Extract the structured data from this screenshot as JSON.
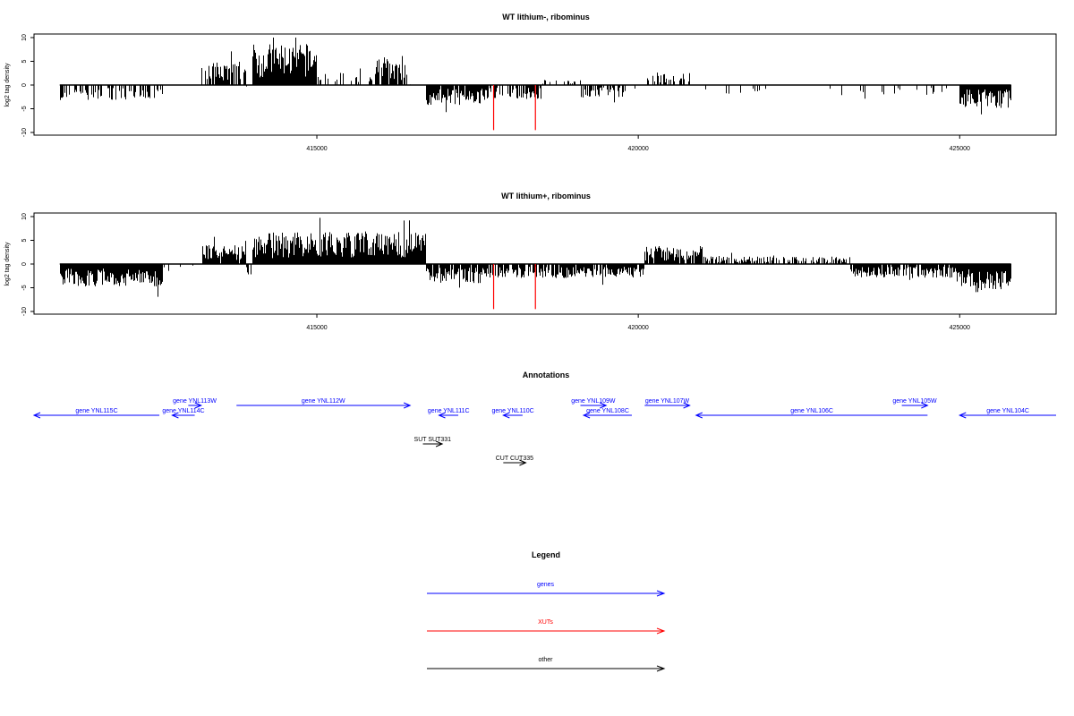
{
  "colors": {
    "gene": "#0000ff",
    "xut": "#ff0000",
    "other": "#000000",
    "axis": "#000000"
  },
  "chart_data": [
    {
      "type": "bar",
      "title": "WT lithium-, ribominus",
      "ylabel": "log2 tag density",
      "xlim": [
        410600,
        426500
      ],
      "ylim": [
        -10,
        10
      ],
      "yticks": [
        10,
        5,
        0,
        -5,
        -10
      ],
      "xticks": [
        415000,
        420000,
        425000
      ],
      "xtick_labels": [
        "415000",
        "420000",
        "425000"
      ],
      "grid": false,
      "segments": [
        {
          "from": 411000,
          "to": 412600,
          "amp": -2.5,
          "fill": 0.55
        },
        {
          "from": 412600,
          "to": 413200,
          "amp": -0.4,
          "fill": 0.05
        },
        {
          "from": 413200,
          "to": 413900,
          "amp": 3.8,
          "fill": 0.8
        },
        {
          "from": 413900,
          "to": 414000,
          "amp": -1.0,
          "fill": 0.3
        },
        {
          "from": 414000,
          "to": 415000,
          "amp": 6.5,
          "fill": 1.0
        },
        {
          "from": 415000,
          "to": 415900,
          "amp": 2.0,
          "fill": 0.25
        },
        {
          "from": 415900,
          "to": 416400,
          "amp": 4.2,
          "fill": 0.9
        },
        {
          "from": 416400,
          "to": 416700,
          "amp": 0.3,
          "fill": 0.05
        },
        {
          "from": 416700,
          "to": 417600,
          "amp": -3.2,
          "fill": 0.9
        },
        {
          "from": 417600,
          "to": 418500,
          "amp": -2.2,
          "fill": 0.6
        },
        {
          "from": 418500,
          "to": 419100,
          "amp": 0.8,
          "fill": 0.3
        },
        {
          "from": 419100,
          "to": 419800,
          "amp": -2.0,
          "fill": 0.6
        },
        {
          "from": 419800,
          "to": 420100,
          "amp": -0.6,
          "fill": 0.1
        },
        {
          "from": 420100,
          "to": 420800,
          "amp": 2.0,
          "fill": 0.5
        },
        {
          "from": 420800,
          "to": 425000,
          "amp": -1.6,
          "fill": 0.1
        },
        {
          "from": 425000,
          "to": 425800,
          "amp": -3.6,
          "fill": 1.0
        }
      ],
      "xut_markers": [
        {
          "x": 417750,
          "y": -9.5
        },
        {
          "x": 418400,
          "y": -9.5
        }
      ]
    },
    {
      "type": "bar",
      "title": "WT lithium+, ribominus",
      "ylabel": "log2 tag density",
      "xlim": [
        410600,
        426500
      ],
      "ylim": [
        -10,
        10
      ],
      "yticks": [
        10,
        5,
        0,
        -5,
        -10
      ],
      "xticks": [
        415000,
        420000,
        425000
      ],
      "xtick_labels": [
        "415000",
        "420000",
        "425000"
      ],
      "grid": false,
      "segments": [
        {
          "from": 411000,
          "to": 412600,
          "amp": -3.5,
          "fill": 1.0
        },
        {
          "from": 412600,
          "to": 413200,
          "amp": -0.8,
          "fill": 0.2
        },
        {
          "from": 413200,
          "to": 413900,
          "amp": 3.0,
          "fill": 0.9
        },
        {
          "from": 413900,
          "to": 414000,
          "amp": -2.0,
          "fill": 0.4
        },
        {
          "from": 414000,
          "to": 416700,
          "amp": 5.0,
          "fill": 1.0
        },
        {
          "from": 416700,
          "to": 417600,
          "amp": -3.0,
          "fill": 0.9
        },
        {
          "from": 417600,
          "to": 418800,
          "amp": -2.2,
          "fill": 0.7
        },
        {
          "from": 418800,
          "to": 420100,
          "amp": -2.2,
          "fill": 0.9
        },
        {
          "from": 420100,
          "to": 421000,
          "amp": 2.8,
          "fill": 0.9
        },
        {
          "from": 421000,
          "to": 423300,
          "amp": 1.2,
          "fill": 0.6
        },
        {
          "from": 423300,
          "to": 425000,
          "amp": -2.2,
          "fill": 0.9
        },
        {
          "from": 425000,
          "to": 425800,
          "amp": -4.5,
          "fill": 1.0
        }
      ],
      "xut_markers": [
        {
          "x": 417750,
          "y": -9.5
        },
        {
          "x": 418400,
          "y": -9.5
        }
      ]
    },
    {
      "type": "annotation-track",
      "title": "Annotations",
      "xlim": [
        410600,
        426500
      ],
      "features": [
        {
          "label": "gene YNL115C",
          "kind": "gene",
          "start": 412550,
          "end": 410600,
          "row": 1
        },
        {
          "label": "gene YNL114C",
          "kind": "gene",
          "start": 413100,
          "end": 412750,
          "row": 1
        },
        {
          "label": "gene YNL113W",
          "kind": "gene",
          "start": 413000,
          "end": 413200,
          "row": 0
        },
        {
          "label": "gene YNL112W",
          "kind": "gene",
          "start": 413750,
          "end": 416450,
          "row": 0
        },
        {
          "label": "gene YNL111C",
          "kind": "gene",
          "start": 417200,
          "end": 416900,
          "row": 1
        },
        {
          "label": "gene YNL110C",
          "kind": "gene",
          "start": 418200,
          "end": 417900,
          "row": 1
        },
        {
          "label": "gene YNL109W",
          "kind": "gene",
          "start": 419100,
          "end": 419500,
          "row": 0
        },
        {
          "label": "gene YNL108C",
          "kind": "gene",
          "start": 419900,
          "end": 419150,
          "row": 1
        },
        {
          "label": "gene YNL107W",
          "kind": "gene",
          "start": 420100,
          "end": 420800,
          "row": 0
        },
        {
          "label": "gene YNL106C",
          "kind": "gene",
          "start": 424500,
          "end": 420900,
          "row": 1
        },
        {
          "label": "gene YNL105W",
          "kind": "gene",
          "start": 424100,
          "end": 424500,
          "row": 0
        },
        {
          "label": "gene YNL104C",
          "kind": "gene",
          "start": 426500,
          "end": 425000,
          "row": 1
        },
        {
          "label": "SUT SUT331",
          "kind": "other",
          "start": 416650,
          "end": 416950,
          "row": 2
        },
        {
          "label": "CUT CUT335",
          "kind": "other",
          "start": 417900,
          "end": 418250,
          "row": 3
        }
      ]
    },
    {
      "type": "legend",
      "title": "Legend",
      "entries": [
        {
          "label": "genes",
          "kind": "gene"
        },
        {
          "label": "XUTs",
          "kind": "xut"
        },
        {
          "label": "other",
          "kind": "other"
        }
      ]
    }
  ]
}
